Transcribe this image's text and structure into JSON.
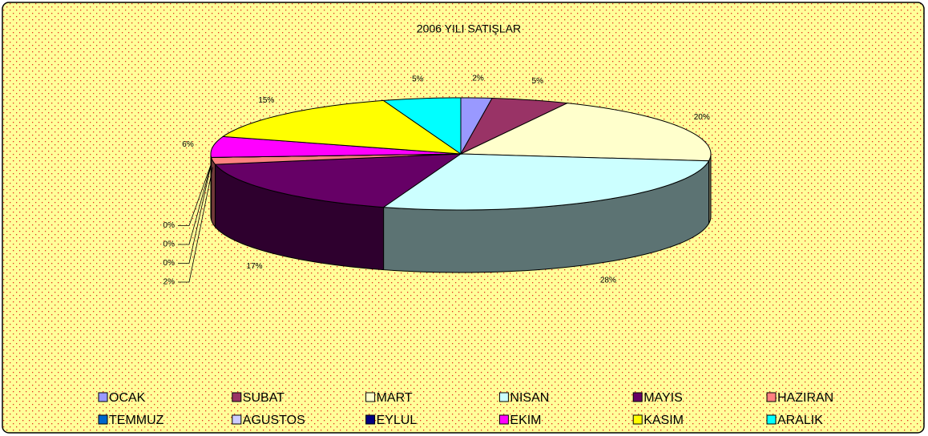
{
  "chart_data": {
    "type": "pie3d",
    "title": "2006 YILI SATIŞLAR",
    "categories": [
      "OCAK",
      "SUBAT",
      "MART",
      "NISAN",
      "MAYIS",
      "HAZIRAN",
      "TEMMUZ",
      "AGUSTOS",
      "EYLUL",
      "EKIM",
      "KASIM",
      "ARALIK"
    ],
    "values": [
      2,
      5,
      20,
      28,
      17,
      2,
      0,
      0,
      0,
      6,
      15,
      5
    ],
    "value_labels": [
      "2%",
      "5%",
      "20%",
      "28%",
      "17%",
      "2%",
      "0%",
      "0%",
      "0%",
      "6%",
      "15%",
      "5%"
    ],
    "colors": [
      "#9999ff",
      "#993366",
      "#ffffcc",
      "#ccffff",
      "#660066",
      "#ff8080",
      "#0066cc",
      "#ccccff",
      "#000080",
      "#ff00ff",
      "#ffff00",
      "#00ffff"
    ],
    "legend": "bottom"
  }
}
